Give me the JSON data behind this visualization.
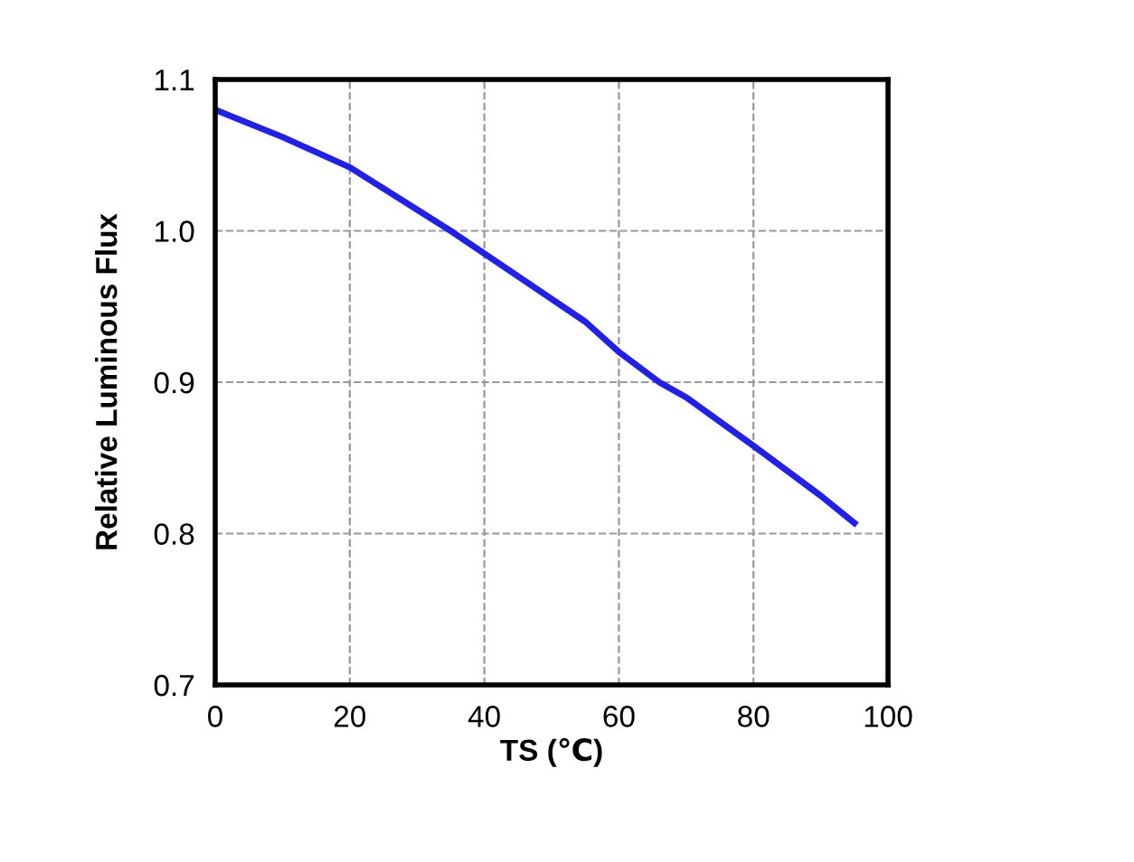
{
  "chart_data": {
    "type": "line",
    "xlabel": "TS (℃)",
    "ylabel": "Relative Luminous Flux",
    "series": [
      {
        "color": "#2020e8",
        "x": [
          0,
          10,
          20,
          30,
          35,
          40,
          50,
          55,
          60,
          66,
          70,
          80,
          90,
          95
        ],
        "values": [
          1.08,
          1.062,
          1.042,
          1.014,
          1.0,
          0.985,
          0.955,
          0.94,
          0.92,
          0.9,
          0.89,
          0.858,
          0.825,
          0.807
        ]
      }
    ],
    "xlim": [
      0,
      100
    ],
    "xticks": [
      0,
      20,
      40,
      60,
      80,
      100
    ],
    "ylim": [
      0.7,
      1.1
    ],
    "yticks": [
      {
        "value": 0.7,
        "label": "0.7"
      },
      {
        "value": 0.8,
        "label": "0.8"
      },
      {
        "value": 0.9,
        "label": "0.9"
      },
      {
        "value": 1.0,
        "label": "1.0"
      },
      {
        "value": 1.1,
        "label": "1.1"
      }
    ],
    "grid": true,
    "line_style": "solid",
    "marker": "none"
  }
}
